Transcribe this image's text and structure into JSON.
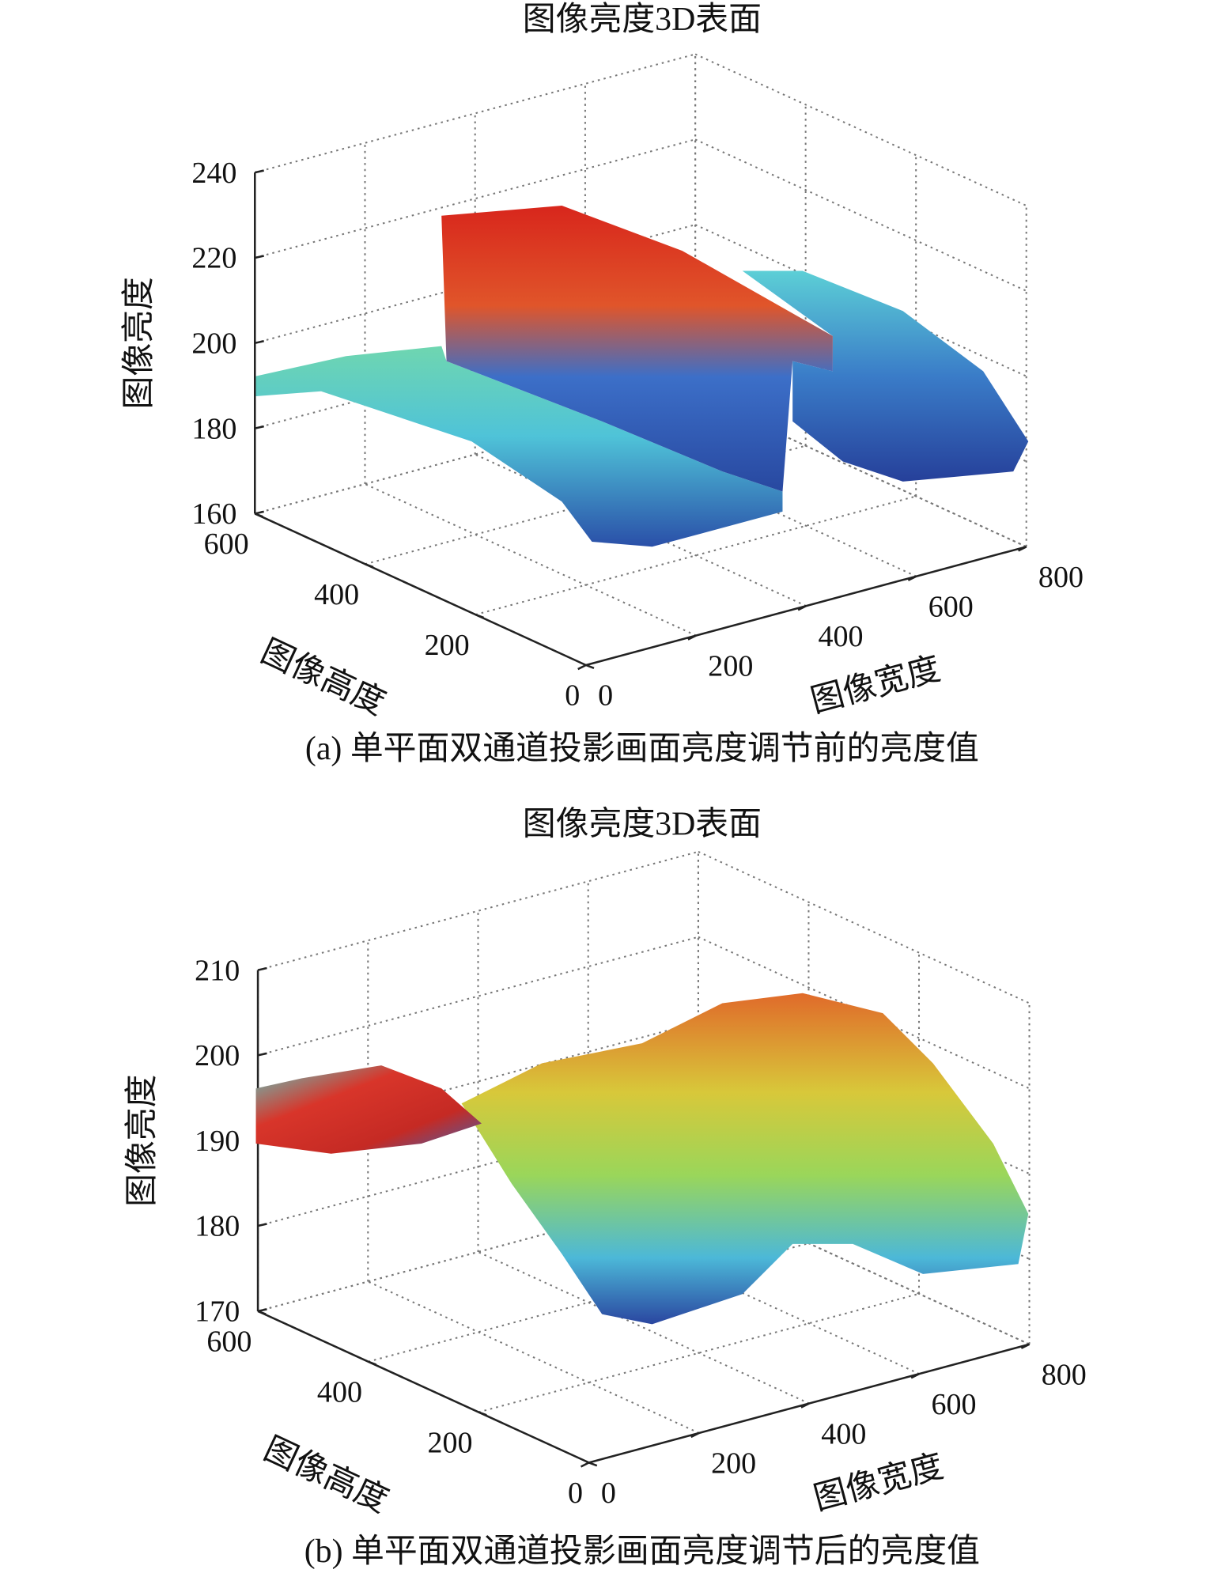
{
  "chart_data": [
    {
      "type": "surface",
      "title": "图像亮度3D表面",
      "caption": "(a) 单平面双通道投影画面亮度调节前的亮度值",
      "xlabel": "图像宽度",
      "ylabel": "图像高度",
      "zlabel": "图像亮度",
      "xlim": [
        0,
        800
      ],
      "xticks": [
        0,
        200,
        400,
        600,
        800
      ],
      "ylim": [
        0,
        600
      ],
      "yticks": [
        0,
        200,
        400,
        600
      ],
      "zlim": [
        160,
        240
      ],
      "zticks": [
        160,
        180,
        200,
        220,
        240
      ],
      "grid": true,
      "colormap": "jet"
    },
    {
      "type": "surface",
      "title": "图像亮度3D表面",
      "caption": "(b) 单平面双通道投影画面亮度调节后的亮度值",
      "xlabel": "图像宽度",
      "ylabel": "图像高度",
      "zlabel": "图像亮度",
      "xlim": [
        0,
        800
      ],
      "xticks": [
        0,
        200,
        400,
        600,
        800
      ],
      "ylim": [
        0,
        600
      ],
      "yticks": [
        0,
        200,
        400,
        600
      ],
      "zlim": [
        170,
        210
      ],
      "zticks": [
        170,
        180,
        190,
        200,
        210
      ],
      "grid": true,
      "colormap": "jet"
    }
  ]
}
